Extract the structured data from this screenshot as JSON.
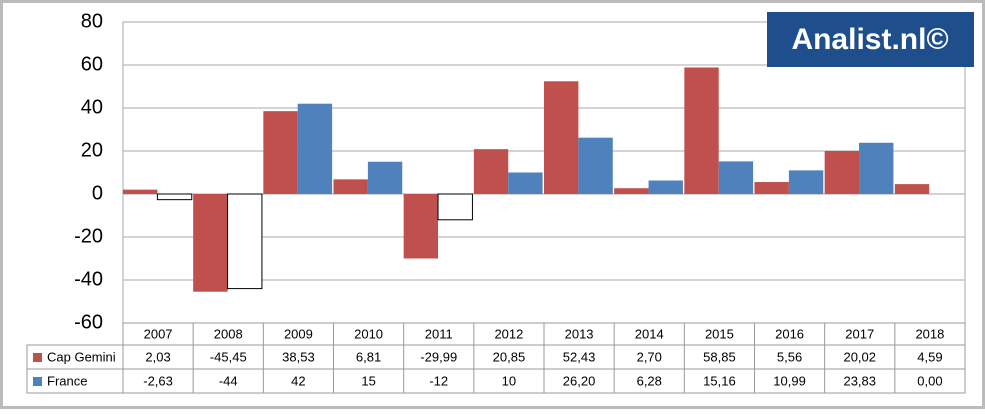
{
  "chart_data": {
    "type": "bar",
    "watermark": "Analist.nl©",
    "categories": [
      "2007",
      "2008",
      "2009",
      "2010",
      "2011",
      "2012",
      "2013",
      "2014",
      "2015",
      "2016",
      "2017",
      "2018"
    ],
    "series": [
      {
        "name": "Cap Gemini",
        "color": "#c0504d",
        "values": [
          2.03,
          -45.45,
          38.53,
          6.81,
          -29.99,
          20.85,
          52.43,
          2.7,
          58.85,
          5.56,
          20.02,
          4.59
        ],
        "value_labels": [
          "2,03",
          "-45,45",
          "38,53",
          "6,81",
          "-29,99",
          "20,85",
          "52,43",
          "2,70",
          "58,85",
          "5,56",
          "20,02",
          "4,59"
        ]
      },
      {
        "name": "France",
        "color": "#4f81bd",
        "invert_if_negative": true,
        "values": [
          -2.63,
          -44,
          42,
          15,
          -12,
          10,
          26.2,
          6.28,
          15.16,
          10.99,
          23.83,
          0.0
        ],
        "value_labels": [
          "-2,63",
          "-44",
          "42",
          "15",
          "-12",
          "10",
          "26,20",
          "6,28",
          "15,16",
          "10,99",
          "23,83",
          "0,00"
        ]
      }
    ],
    "ylim": [
      -60,
      80
    ],
    "yticks": [
      -60,
      -40,
      -20,
      0,
      20,
      40,
      60,
      80
    ],
    "grid": true
  }
}
